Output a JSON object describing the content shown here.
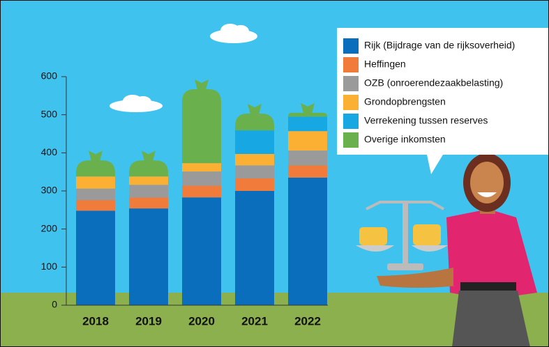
{
  "chart_data": {
    "type": "stacked-bar",
    "categories": [
      "2018",
      "2019",
      "2020",
      "2021",
      "2022"
    ],
    "series": [
      {
        "name": "Rijk (Bijdrage van de rijksoverheid)",
        "color": "#0a6ebd",
        "values": [
          248,
          254,
          283,
          300,
          335
        ]
      },
      {
        "name": "Heffingen",
        "color": "#f07b3a",
        "values": [
          28,
          29,
          31,
          33,
          32
        ]
      },
      {
        "name": "OZB (onroerendezaakbelasting)",
        "color": "#9a9a9a",
        "values": [
          30,
          33,
          37,
          34,
          39
        ]
      },
      {
        "name": "Grondopbrengsten",
        "color": "#fbb034",
        "values": [
          32,
          22,
          22,
          30,
          51
        ]
      },
      {
        "name": "Verrekening tussen reserves",
        "color": "#17a8e3",
        "values": [
          0,
          0,
          0,
          62,
          38
        ]
      },
      {
        "name": "Overige inkomsten",
        "color": "#6ab04c",
        "values": [
          42,
          42,
          194,
          44,
          10
        ]
      }
    ],
    "ylim": [
      0,
      600
    ],
    "yticks": [
      0,
      100,
      200,
      300,
      400,
      500,
      600
    ]
  }
}
